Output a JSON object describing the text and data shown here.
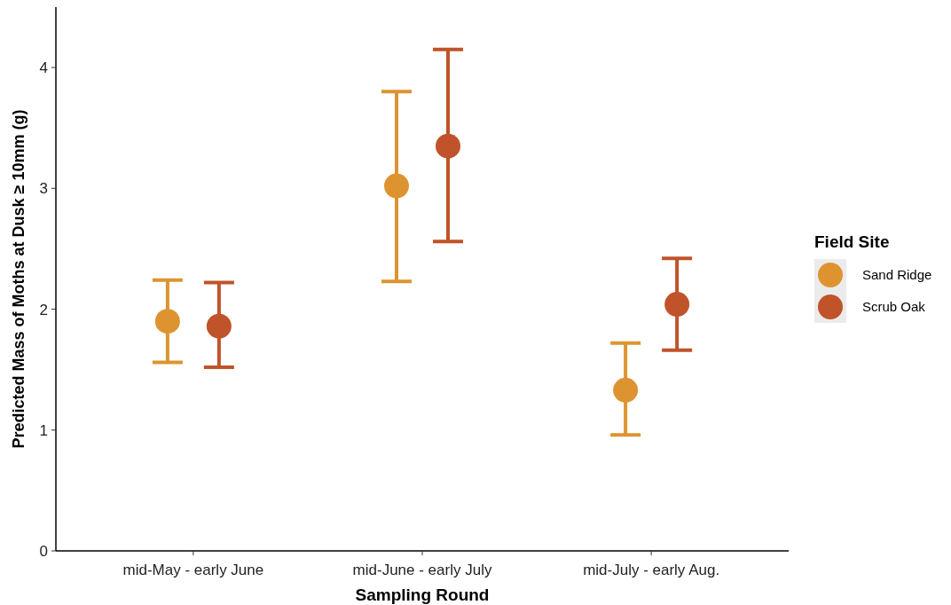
{
  "chart_data": {
    "type": "scatter",
    "xlabel": "Sampling Round",
    "ylabel": "Predicted Mass of Moths at Dusk ≥ 10mm (g)",
    "legend_title": "Field Site",
    "legend": "right",
    "marker": "circle",
    "grid": false,
    "categories": [
      "mid-May - early June",
      "mid-June - early July",
      "mid-July - early Aug."
    ],
    "ylim": [
      0,
      4.5
    ],
    "yticks": [
      0,
      1,
      2,
      3,
      4
    ],
    "series": [
      {
        "name": "Sand Ridge",
        "color": "#dd9430",
        "values": [
          1.9,
          3.02,
          1.33
        ],
        "errors": [
          [
            1.56,
            2.24
          ],
          [
            2.23,
            3.8
          ],
          [
            0.96,
            1.72
          ]
        ]
      },
      {
        "name": "Scrub Oak",
        "color": "#c0532a",
        "values": [
          1.86,
          3.35,
          2.04
        ],
        "errors": [
          [
            1.52,
            2.22
          ],
          [
            2.56,
            4.15
          ],
          [
            1.66,
            2.42
          ]
        ]
      }
    ]
  }
}
